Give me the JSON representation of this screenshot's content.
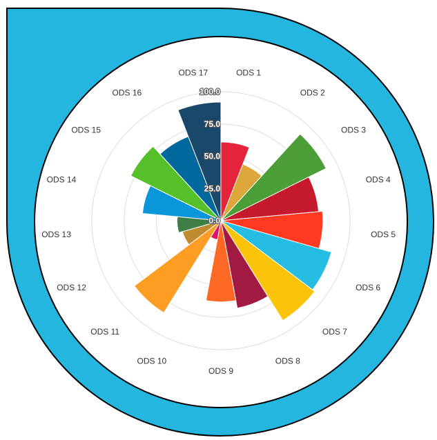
{
  "frame": {
    "outer_color": "#25B6E0",
    "inner_color": "#ffffff",
    "border_color": "#000000"
  },
  "chart_data": {
    "type": "polar-bar",
    "categories": [
      "ODS 1",
      "ODS 2",
      "ODS 3",
      "ODS 4",
      "ODS 5",
      "ODS 6",
      "ODS 7",
      "ODS 8",
      "ODS 9",
      "ODS 10",
      "ODS 11",
      "ODS 12",
      "ODS 13",
      "ODS 14",
      "ODS 15",
      "ODS 16",
      "ODS 17"
    ],
    "values": [
      61,
      47,
      91,
      76,
      79,
      89,
      91,
      69,
      63,
      15,
      84,
      31,
      34,
      61,
      78,
      70,
      92
    ],
    "colors": [
      "#E5243B",
      "#DDA63A",
      "#4C9F38",
      "#C5192D",
      "#FF3A21",
      "#26BDE2",
      "#FCC30B",
      "#A21942",
      "#FD6925",
      "#DD1367",
      "#FD9D24",
      "#BF8B2E",
      "#3F7E44",
      "#0A97D9",
      "#56C02B",
      "#00689D",
      "#19486A"
    ],
    "radial_ticks": [
      "0.0",
      "25.0",
      "50.0",
      "75.0",
      "100.0"
    ],
    "radial_tick_values": [
      0,
      25,
      50,
      75,
      100
    ],
    "rlim": [
      0,
      100
    ],
    "grid": true
  }
}
